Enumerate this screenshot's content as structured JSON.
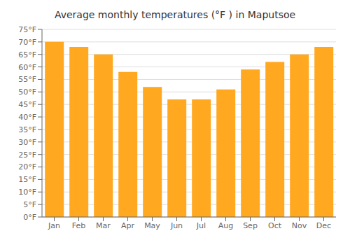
{
  "chart_data": {
    "type": "bar",
    "title": "Average monthly temperatures (°F ) in Maputsoe",
    "categories": [
      "Jan",
      "Feb",
      "Mar",
      "Apr",
      "May",
      "Jun",
      "Jul",
      "Aug",
      "Sep",
      "Oct",
      "Nov",
      "Dec"
    ],
    "values": [
      70,
      68,
      65,
      58,
      52,
      47,
      47,
      51,
      59,
      62,
      65,
      68
    ],
    "color": "#FFA820",
    "ylim": [
      0,
      75
    ],
    "yticks": [
      {
        "value": 0,
        "label": "0°F"
      },
      {
        "value": 5,
        "label": "5°F"
      },
      {
        "value": 10,
        "label": "10°F"
      },
      {
        "value": 15,
        "label": "15°F"
      },
      {
        "value": 20,
        "label": "20°F"
      },
      {
        "value": 25,
        "label": "25°F"
      },
      {
        "value": 30,
        "label": "30°F"
      },
      {
        "value": 35,
        "label": "35°F"
      },
      {
        "value": 40,
        "label": "40°F"
      },
      {
        "value": 45,
        "label": "45°F"
      },
      {
        "value": 50,
        "label": "50°F"
      },
      {
        "value": 55,
        "label": "55°F"
      },
      {
        "value": 60,
        "label": "60°F"
      },
      {
        "value": 65,
        "label": "65°F"
      },
      {
        "value": 70,
        "label": "70°F"
      },
      {
        "value": 75,
        "label": "75°F"
      }
    ],
    "grid": true
  }
}
